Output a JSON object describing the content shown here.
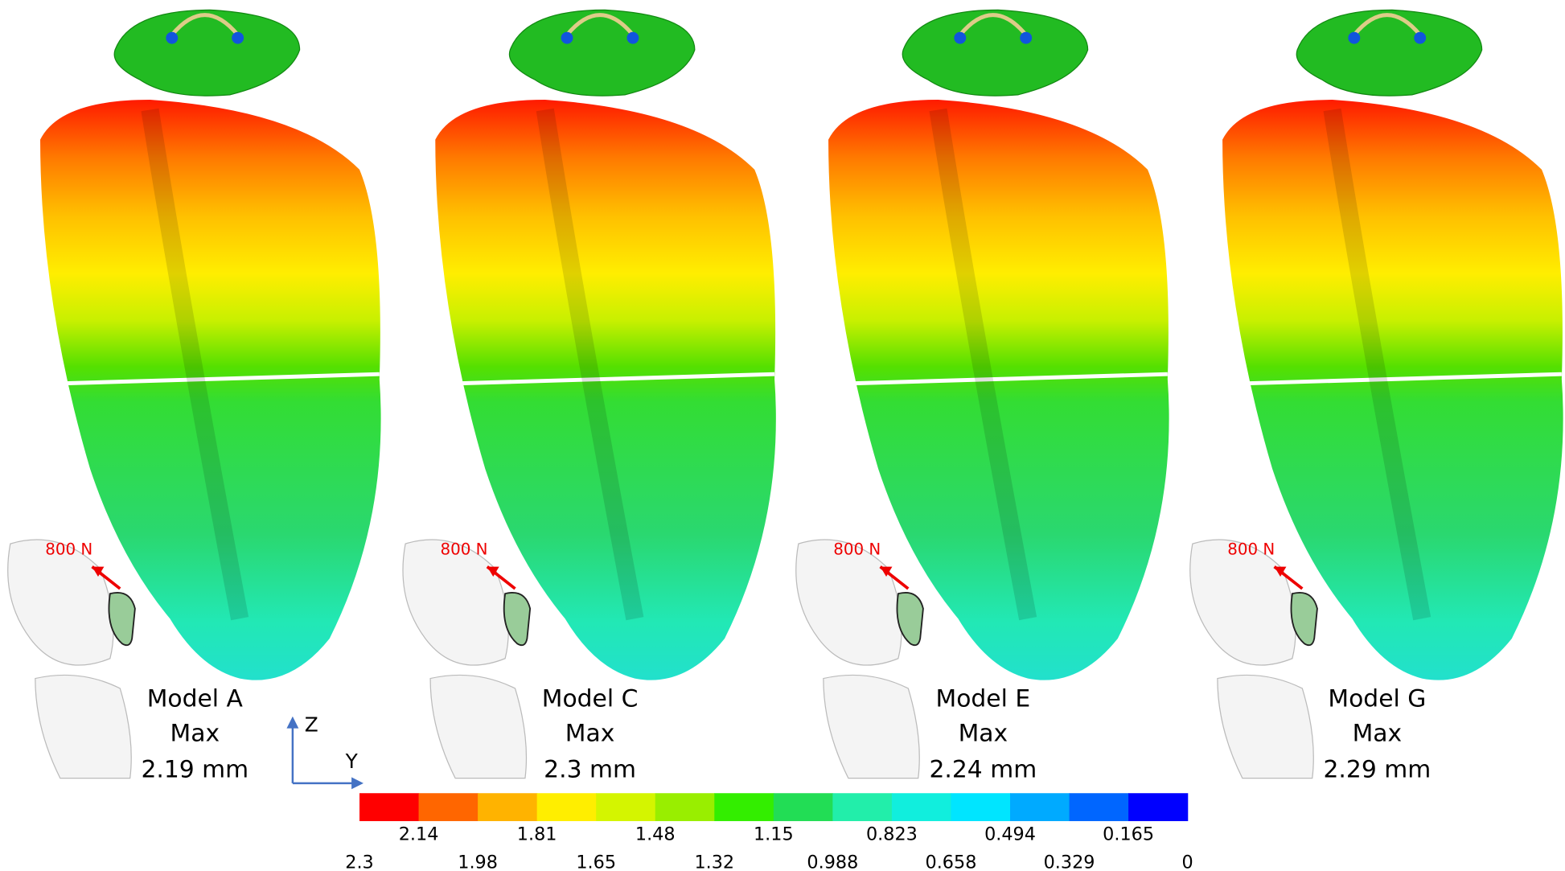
{
  "models": [
    {
      "label": "Model A",
      "max_label": "Max",
      "max_value": "2.19 mm",
      "load": "800 N"
    },
    {
      "label": "Model C",
      "max_label": "Max",
      "max_value": "2.3 mm",
      "load": "800 N"
    },
    {
      "label": "Model E",
      "max_label": "Max",
      "max_value": "2.24 mm",
      "load": "800 N"
    },
    {
      "label": "Model G",
      "max_label": "Max",
      "max_value": "2.29 mm",
      "load": "800 N"
    }
  ],
  "axes": {
    "z": "Z",
    "y": "Y"
  },
  "colorbar": {
    "colors": [
      "#ff0000",
      "#ff6600",
      "#ffb300",
      "#ffee00",
      "#d4f500",
      "#99ee00",
      "#33ee00",
      "#22dd55",
      "#22eeaa",
      "#11eedd",
      "#00e5ff",
      "#00aaff",
      "#0066ff",
      "#0000ff"
    ],
    "labels": [
      "2.3",
      "2.14",
      "1.98",
      "1.81",
      "1.65",
      "1.48",
      "1.32",
      "1.15",
      "0.988",
      "0.823",
      "0.658",
      "0.494",
      "0.329",
      "0.165",
      "0"
    ]
  }
}
